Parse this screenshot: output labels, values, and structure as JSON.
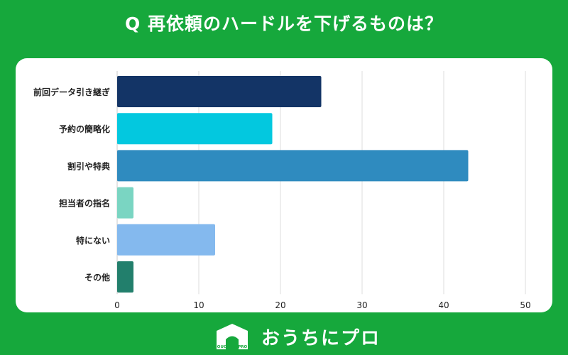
{
  "title": "Q 再依頼のハードルを下げるものは？",
  "chart_data": {
    "type": "bar",
    "orientation": "horizontal",
    "title": "Q 再依頼のハードルを下げるものは？",
    "categories": [
      "前回データ引き継ぎ",
      "予約の簡略化",
      "割引や特典",
      "担当者の指名",
      "特にない",
      "その他"
    ],
    "values": [
      25,
      19,
      43,
      2,
      12,
      2
    ],
    "colors": [
      "#133466",
      "#03c8df",
      "#2f8bbf",
      "#7ad5c2",
      "#84b9ee",
      "#227f6c"
    ],
    "xlim": [
      0,
      50
    ],
    "xticks": [
      0,
      10,
      20,
      30,
      40,
      50
    ],
    "xlabel": "",
    "ylabel": "",
    "grid": true
  },
  "footer": {
    "logo_small": "OUCHI ni PRO",
    "brand": "おうちにプロ"
  }
}
